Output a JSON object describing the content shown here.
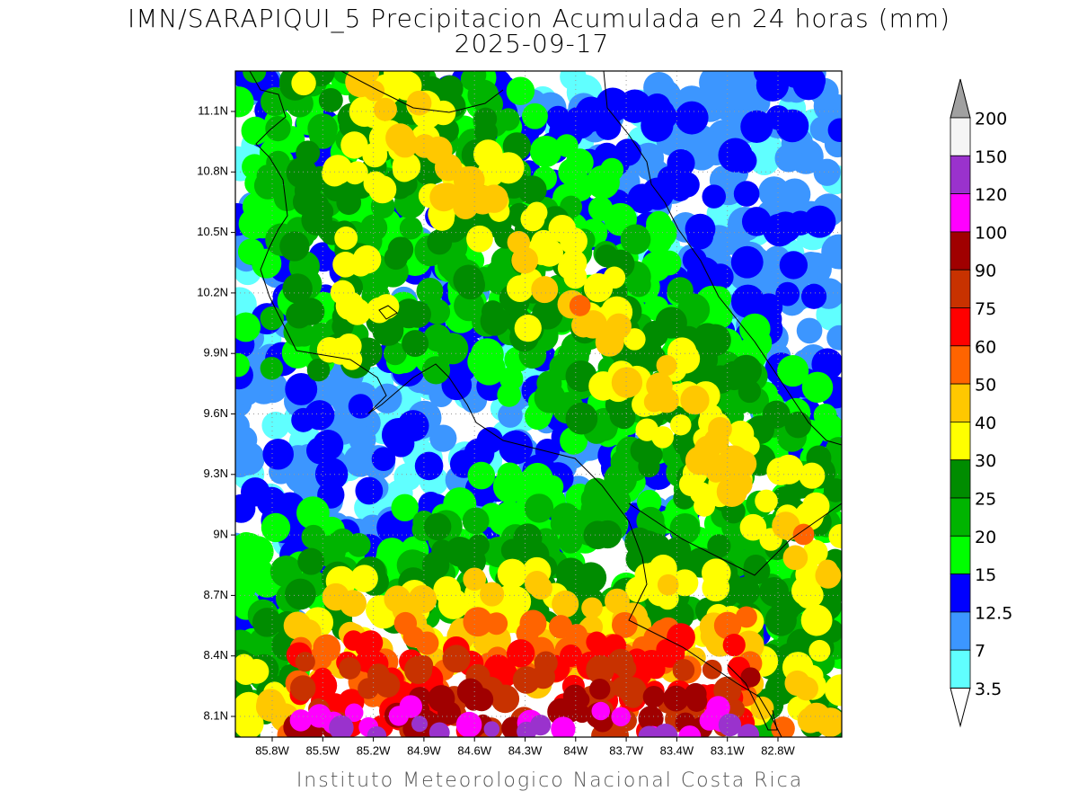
{
  "header": {
    "title": "IMN/SARAPIQUI_5 Precipitacion Acumulada en 24 horas (mm)",
    "subtitle": "2025-09-17"
  },
  "map": {
    "lon_ticks": [
      "85.8W",
      "85.5W",
      "85.2W",
      "84.9W",
      "84.6W",
      "84.3W",
      "84W",
      "83.7W",
      "83.4W",
      "83.1W",
      "82.8W"
    ],
    "lat_ticks": [
      "11.1N",
      "10.8N",
      "10.5N",
      "10.2N",
      "9.9N",
      "9.6N",
      "9.3N",
      "9N",
      "8.7N",
      "8.4N",
      "8.1N"
    ]
  },
  "colorbar": {
    "levels": [
      200,
      150,
      120,
      100,
      90,
      75,
      60,
      50,
      40,
      30,
      25,
      20,
      15,
      12.5,
      7,
      3.5
    ],
    "colors": [
      "#f5f5f5",
      "#9a32cd",
      "#ff00ff",
      "#a00000",
      "#c83200",
      "#ff0000",
      "#ff6400",
      "#ffc800",
      "#ffff00",
      "#008c00",
      "#00b400",
      "#00ff00",
      "#0000ff",
      "#3c96ff",
      "#60ffff"
    ],
    "over_color": "#a0a0a0",
    "under_color": "#ffffff"
  },
  "footer": {
    "credit": "Instituto Meteorologico Nacional Costa Rica"
  }
}
